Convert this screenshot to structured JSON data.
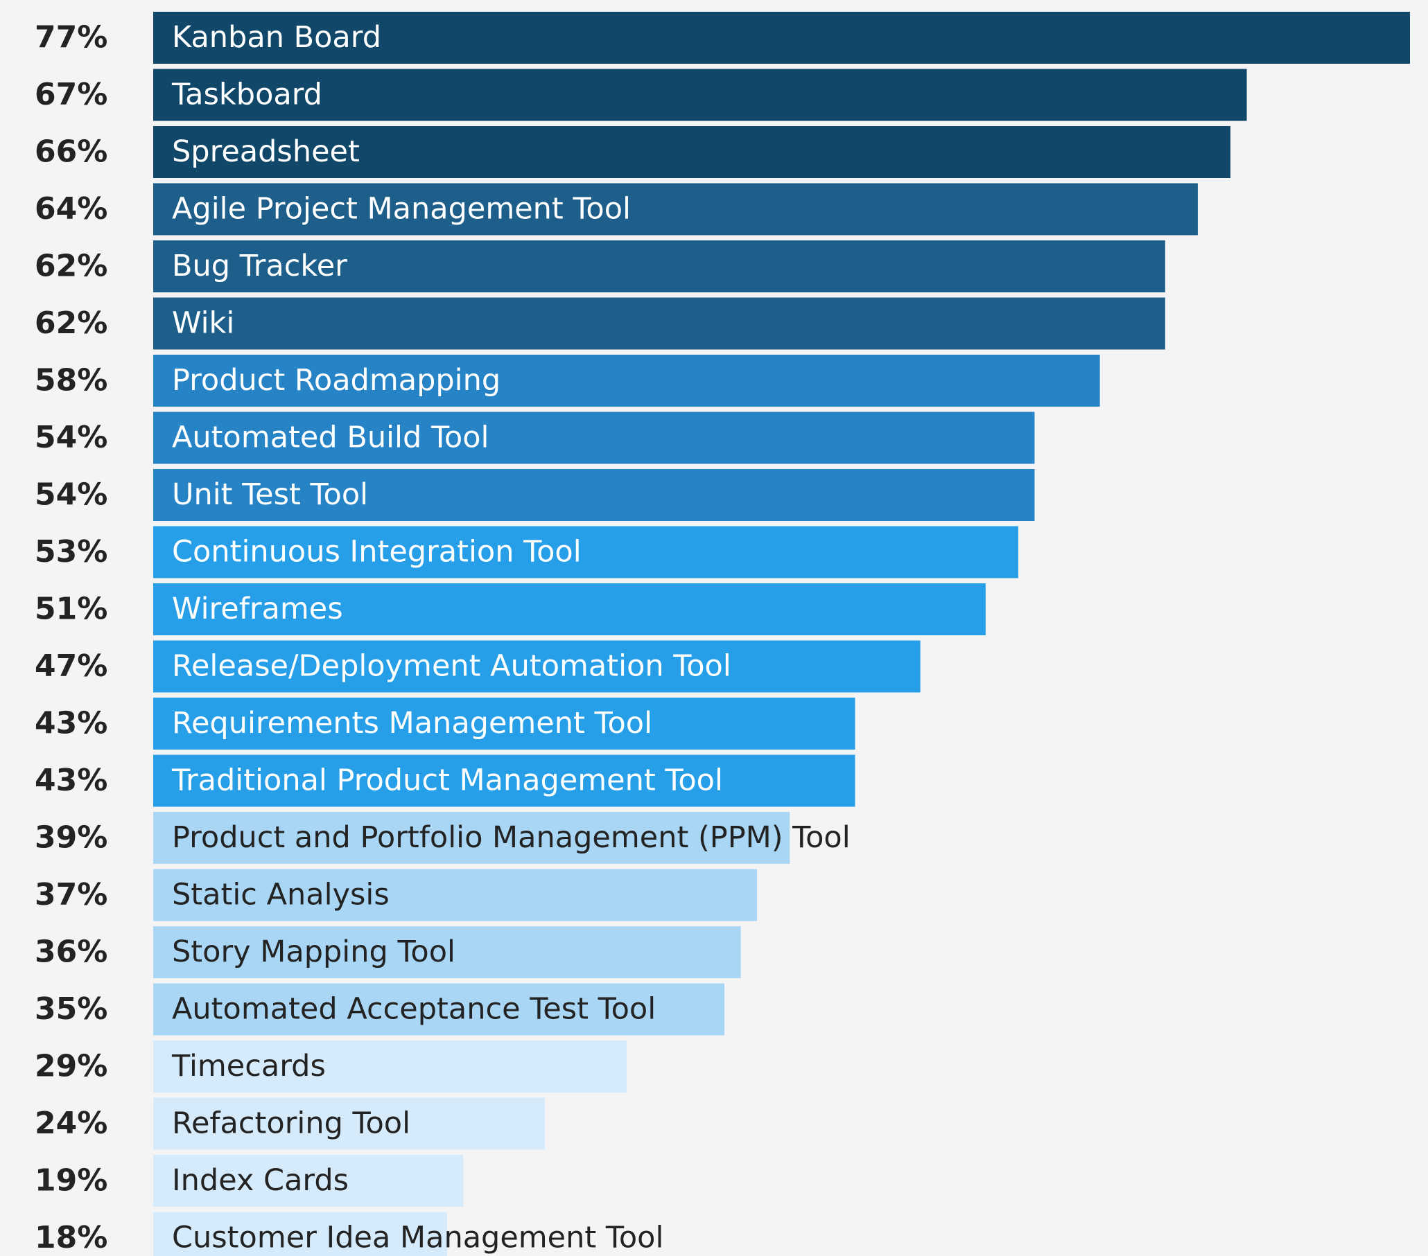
{
  "chart_data": {
    "type": "hbar",
    "categories": [
      "Kanban Board",
      "Taskboard",
      "Spreadsheet",
      "Agile Project Management Tool",
      "Bug Tracker",
      "Wiki",
      "Product Roadmapping",
      "Automated Build Tool",
      "Unit Test Tool",
      "Continuous Integration Tool",
      "Wireframes",
      "Release/Deployment Automation Tool",
      "Requirements Management Tool",
      "Traditional Product Management Tool",
      "Product and Portfolio Management (PPM) Tool",
      "Static Analysis",
      "Story Mapping Tool",
      "Automated Acceptance Test Tool",
      "Timecards",
      "Refactoring Tool",
      "Index Cards",
      "Customer Idea Management Tool"
    ],
    "values": [
      77,
      67,
      66,
      64,
      62,
      62,
      58,
      54,
      54,
      53,
      51,
      47,
      43,
      43,
      39,
      37,
      36,
      35,
      29,
      24,
      19,
      18
    ],
    "value_labels": [
      "77%",
      "67%",
      "66%",
      "64%",
      "62%",
      "62%",
      "58%",
      "54%",
      "54%",
      "53%",
      "51%",
      "47%",
      "43%",
      "43%",
      "39%",
      "37%",
      "36%",
      "35%",
      "29%",
      "24%",
      "19%",
      "18%"
    ],
    "colors": [
      "#11486a",
      "#11486a",
      "#11486a",
      "#1d5f8a",
      "#1d5f8a",
      "#1d5f8a",
      "#2683c6",
      "#2683c6",
      "#2683c6",
      "#269fe8",
      "#269fe8",
      "#269fe8",
      "#269fe8",
      "#269fe8",
      "#a9d6f5",
      "#a9d6f5",
      "#a9d6f5",
      "#a9d6f5",
      "#d5eafa",
      "#d5eafa",
      "#d5eafa",
      "#d5eafa"
    ]
  }
}
